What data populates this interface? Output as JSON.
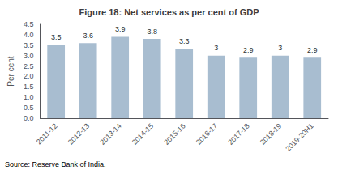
{
  "chart_data": {
    "type": "bar",
    "title": "Figure 18: Net services as per cent of GDP",
    "categories": [
      "2011-12",
      "2012-13",
      "2013-14",
      "2014-15",
      "2015-16",
      "2016-17",
      "2017-18",
      "2018-19",
      "2019-20H1"
    ],
    "values": [
      3.5,
      3.6,
      3.9,
      3.8,
      3.3,
      3.0,
      2.9,
      3.0,
      2.9
    ],
    "color": "#a8bdd0",
    "ylabel": "Per cent",
    "ylim": [
      0,
      4.5
    ],
    "yticks": [
      {
        "value": 0,
        "label": "0.0"
      },
      0.5,
      {
        "value": 1.0,
        "label": "1.0"
      },
      1.5,
      {
        "value": 2.0,
        "label": "2.0"
      },
      2.5,
      {
        "value": 3.0,
        "label": "3.0"
      },
      3.5,
      {
        "value": 4.0,
        "label": "4.0"
      },
      4.5
    ],
    "source": "Source: Reserve Bank of India.",
    "grid": false,
    "data_labels": true
  }
}
